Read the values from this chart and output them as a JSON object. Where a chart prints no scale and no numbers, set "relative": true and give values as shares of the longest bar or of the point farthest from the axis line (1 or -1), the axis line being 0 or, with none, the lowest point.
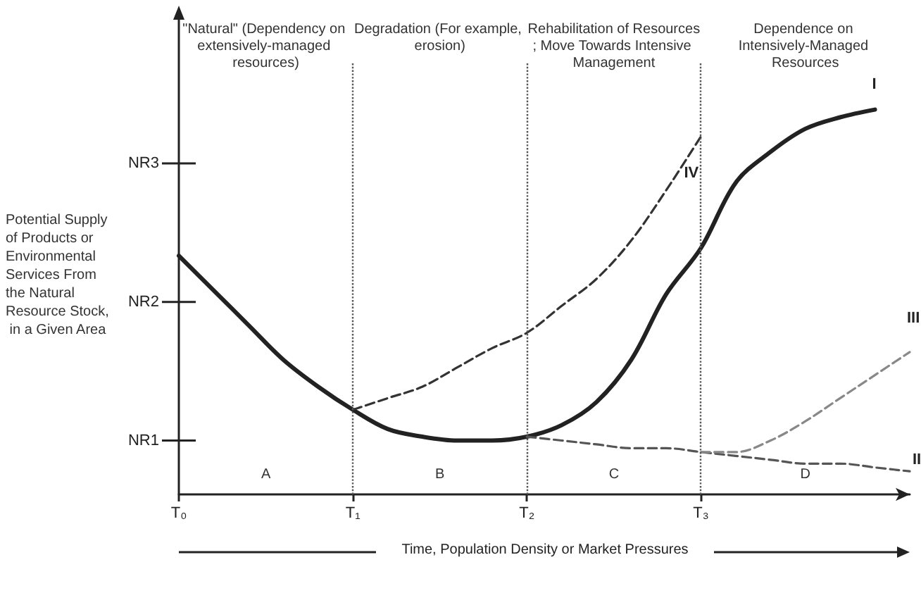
{
  "chart_data": {
    "type": "line",
    "relative": true,
    "xlabel": "Time, Population Density or Market Pressures",
    "ylabel": "Potential Supply of Products or Environmental Services From the Natural Resource Stock, in a Given Area",
    "categories": [
      "T₀",
      null,
      null,
      null,
      null,
      "T₁",
      null,
      null,
      null,
      null,
      "T₂",
      null,
      null,
      null,
      null,
      "T₃",
      null,
      null,
      null,
      null,
      null,
      null
    ],
    "grid": false,
    "legend": false,
    "marker": "none",
    "series": [
      {
        "name": "I",
        "color": "#222222",
        "line_style": "solid",
        "values": [
          0.62,
          0.53,
          0.44,
          0.35,
          0.28,
          0.22,
          0.17,
          0.15,
          0.14,
          0.14,
          0.15,
          0.18,
          0.24,
          0.35,
          0.52,
          0.64,
          0.81,
          0.89,
          0.95,
          0.98,
          1.0,
          null
        ]
      },
      {
        "name": "II",
        "color": "#555555",
        "line_style": "dashed",
        "values": [
          null,
          null,
          null,
          null,
          null,
          null,
          null,
          null,
          null,
          null,
          0.15,
          0.14,
          0.13,
          0.12,
          0.12,
          0.11,
          0.1,
          0.09,
          0.08,
          0.08,
          0.07,
          0.06
        ]
      },
      {
        "name": "III",
        "color": "#888888",
        "line_style": "dashed",
        "values": [
          null,
          null,
          null,
          null,
          null,
          null,
          null,
          null,
          null,
          null,
          null,
          null,
          null,
          null,
          null,
          0.11,
          0.11,
          0.14,
          0.19,
          0.25,
          0.31,
          0.37
        ]
      },
      {
        "name": "IV",
        "color": "#333333",
        "line_style": "dashed",
        "values": [
          null,
          null,
          null,
          null,
          null,
          0.22,
          0.25,
          0.28,
          0.33,
          0.38,
          0.42,
          0.49,
          0.56,
          0.66,
          0.79,
          0.93,
          null,
          null,
          null,
          null,
          null,
          null
        ]
      }
    ],
    "ref_lines": [
      {
        "axis": "x",
        "value": "T₁",
        "color": "#555555",
        "line_style": "dotted"
      },
      {
        "axis": "x",
        "value": "T₂",
        "color": "#555555",
        "line_style": "dotted"
      },
      {
        "axis": "x",
        "value": "T₃",
        "color": "#555555",
        "line_style": "dotted"
      },
      {
        "axis": "y",
        "value": 0.14,
        "label": "NR1"
      },
      {
        "axis": "y",
        "value": 0.5,
        "label": "NR2"
      },
      {
        "axis": "y",
        "value": 0.86,
        "label": "NR3"
      }
    ],
    "annotations": [
      "\"Natural\" (Dependency on extensively-managed resources)",
      "Degradation (For example, erosion)",
      "Rehabilitation of Resources; Move Towards Intensive Management",
      "Dependence on Intensively-Managed Resources",
      "A",
      "B",
      "C",
      "D"
    ]
  }
}
